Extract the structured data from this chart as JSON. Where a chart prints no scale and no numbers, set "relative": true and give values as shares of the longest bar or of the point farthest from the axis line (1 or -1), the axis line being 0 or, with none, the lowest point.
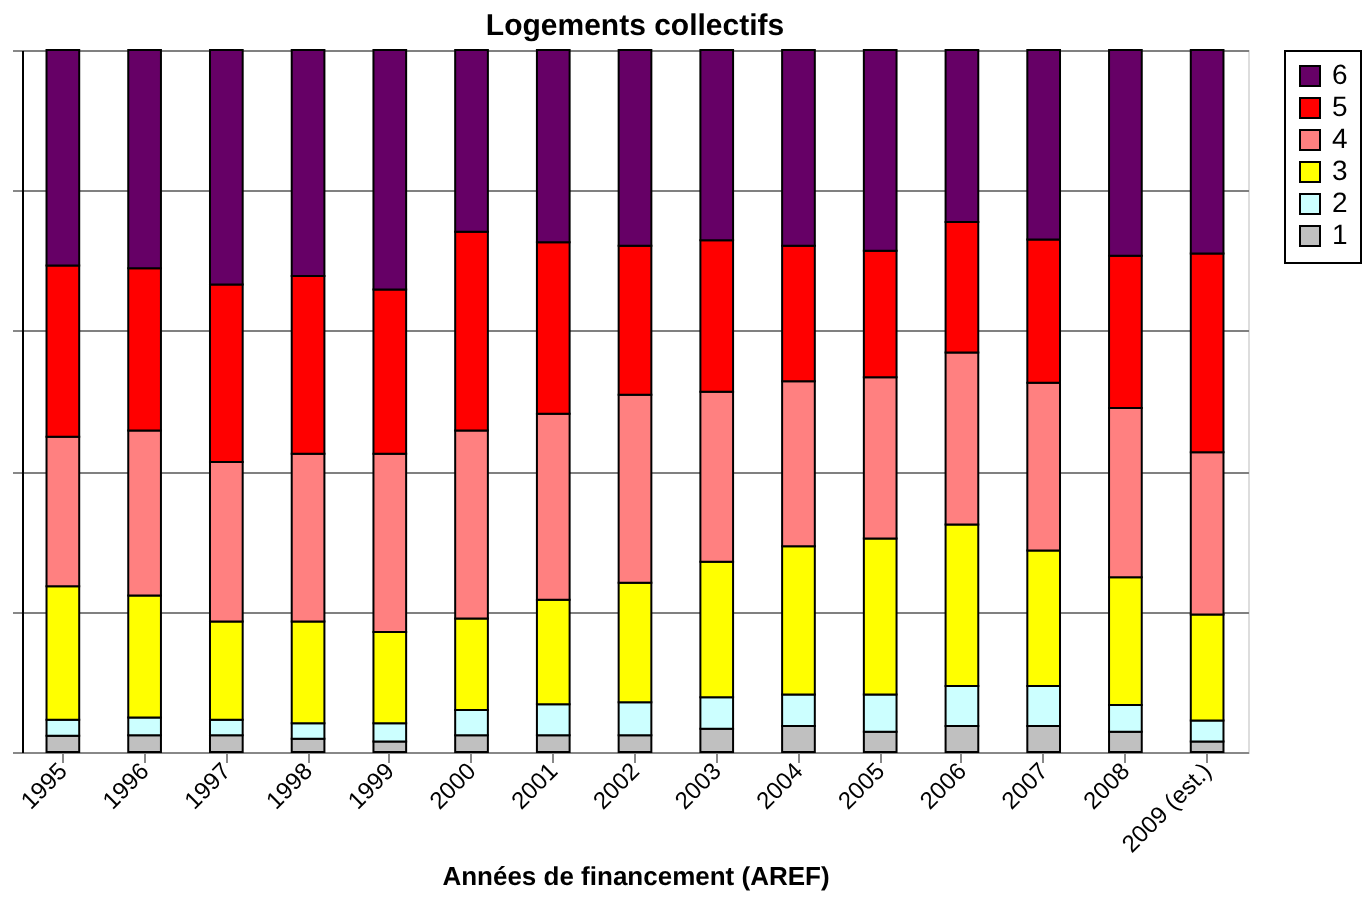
{
  "chart_data": {
    "type": "bar",
    "title": "Logements collectifs",
    "xlabel": "Années de financement (AREF)",
    "stacked": true,
    "relative": true,
    "grid": "y",
    "legend": "right",
    "categories": [
      "1995",
      "1996",
      "1997",
      "1998",
      "1999",
      "2000",
      "2001",
      "2002",
      "2003",
      "2004",
      "2005",
      "2006",
      "2007",
      "2008",
      "2009 (est.)"
    ],
    "series": [
      {
        "name": "1",
        "color": "#c0c0c0",
        "values": [
          0.023,
          0.024,
          0.024,
          0.019,
          0.015,
          0.024,
          0.024,
          0.024,
          0.033,
          0.037,
          0.029,
          0.037,
          0.037,
          0.029,
          0.015
        ]
      },
      {
        "name": "2",
        "color": "#ccffff",
        "values": [
          0.023,
          0.025,
          0.022,
          0.022,
          0.026,
          0.036,
          0.044,
          0.047,
          0.045,
          0.045,
          0.053,
          0.057,
          0.057,
          0.038,
          0.03
        ]
      },
      {
        "name": "3",
        "color": "#ffff00",
        "values": [
          0.19,
          0.174,
          0.14,
          0.145,
          0.13,
          0.13,
          0.149,
          0.17,
          0.193,
          0.211,
          0.222,
          0.23,
          0.193,
          0.182,
          0.151
        ]
      },
      {
        "name": "4",
        "color": "#ff8080",
        "values": [
          0.213,
          0.235,
          0.227,
          0.239,
          0.254,
          0.268,
          0.265,
          0.268,
          0.242,
          0.235,
          0.23,
          0.245,
          0.239,
          0.241,
          0.231
        ]
      },
      {
        "name": "5",
        "color": "#ff0000",
        "values": [
          0.244,
          0.231,
          0.253,
          0.253,
          0.234,
          0.283,
          0.244,
          0.212,
          0.216,
          0.193,
          0.18,
          0.186,
          0.204,
          0.217,
          0.283
        ]
      },
      {
        "name": "6",
        "color": "#660066",
        "values": [
          0.307,
          0.311,
          0.334,
          0.322,
          0.341,
          0.259,
          0.274,
          0.279,
          0.271,
          0.279,
          0.286,
          0.245,
          0.27,
          0.293,
          0.29
        ]
      }
    ]
  }
}
